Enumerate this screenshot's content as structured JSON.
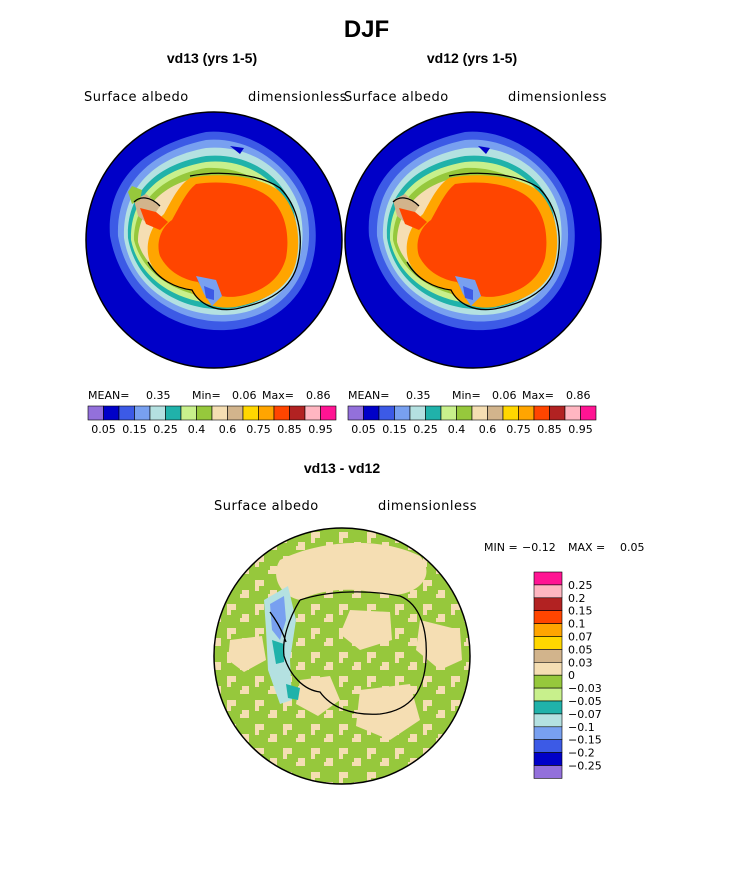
{
  "figure": {
    "title": "DJF",
    "panels": [
      {
        "subtitle": "vd13 (yrs 1-5)",
        "variable_label": "Surface albedo",
        "units_label": "dimensionless",
        "stats": {
          "mean_label": "MEAN=",
          "mean": "0.35",
          "min_label": "Min=",
          "min": "0.06",
          "max_label": "Max=",
          "max": "0.86"
        }
      },
      {
        "subtitle": "vd12 (yrs 1-5)",
        "variable_label": "Surface albedo",
        "units_label": "dimensionless",
        "stats": {
          "mean_label": "MEAN=",
          "mean": "0.35",
          "min_label": "Min=",
          "min": "0.06",
          "max_label": "Max=",
          "max": "0.86"
        }
      }
    ],
    "diff_panel": {
      "subtitle": "vd13 - vd12",
      "variable_label": "Surface albedo",
      "units_label": "dimensionless",
      "stats": {
        "min_label": "MIN =",
        "min": "−0.12",
        "max_label": "MAX =",
        "max": "0.05"
      }
    }
  },
  "albedo_colorbar": {
    "labels": [
      "0.05",
      "0.15",
      "0.25",
      "0.4",
      "0.6",
      "0.75",
      "0.85",
      "0.95"
    ],
    "colors": [
      "#9370db",
      "#0000c8",
      "#3c5ae6",
      "#78a0f0",
      "#b4e1e1",
      "#20b2aa",
      "#c8f08c",
      "#96c83c",
      "#f5deb3",
      "#d2b48c",
      "#ffd700",
      "#ffa500",
      "#ff4500",
      "#b22222",
      "#ffb6c1",
      "#ff1493"
    ]
  },
  "diff_colorbar": {
    "labels": [
      "0.25",
      "0.2",
      "0.15",
      "0.1",
      "0.07",
      "0.05",
      "0.03",
      "0",
      "−0.03",
      "−0.05",
      "−0.07",
      "−0.1",
      "−0.15",
      "−0.2",
      "−0.25"
    ],
    "colors": [
      "#ff1493",
      "#ffb6c1",
      "#b22222",
      "#ff4500",
      "#ffa500",
      "#ffd700",
      "#d2b48c",
      "#f5deb3",
      "#96c83c",
      "#c8f08c",
      "#20b2aa",
      "#b4e1e1",
      "#78a0f0",
      "#3c5ae6",
      "#0000c8",
      "#9370db"
    ]
  }
}
